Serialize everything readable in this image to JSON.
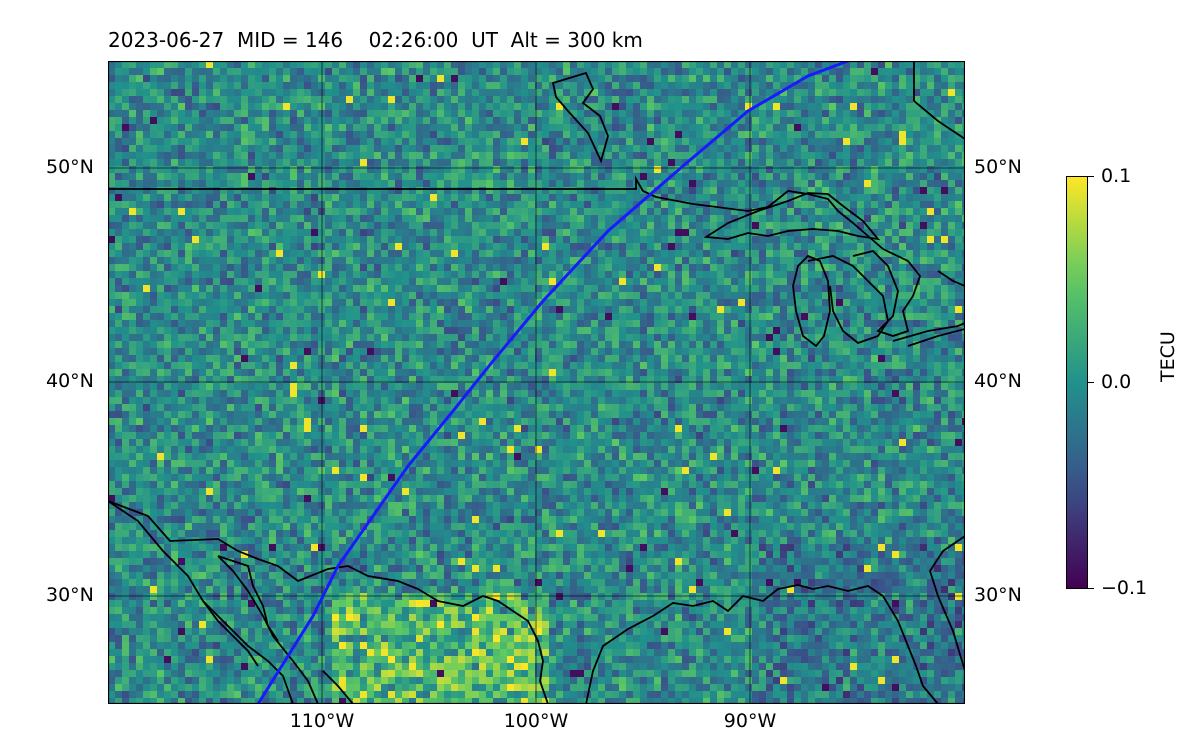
{
  "title": "2023-06-27  MID = 146    02:26:00  UT  Alt = 300 km",
  "map": {
    "lat_ticks": [
      "50°N",
      "40°N",
      "30°N"
    ],
    "lon_ticks": [
      "110°W",
      "100°W",
      "90°W"
    ],
    "satellite_track_color": "#1a1aff"
  },
  "colorbar": {
    "label": "TECU",
    "ticks": [
      "0.1",
      "0.0",
      "−0.1"
    ],
    "colormap": "viridis"
  }
}
